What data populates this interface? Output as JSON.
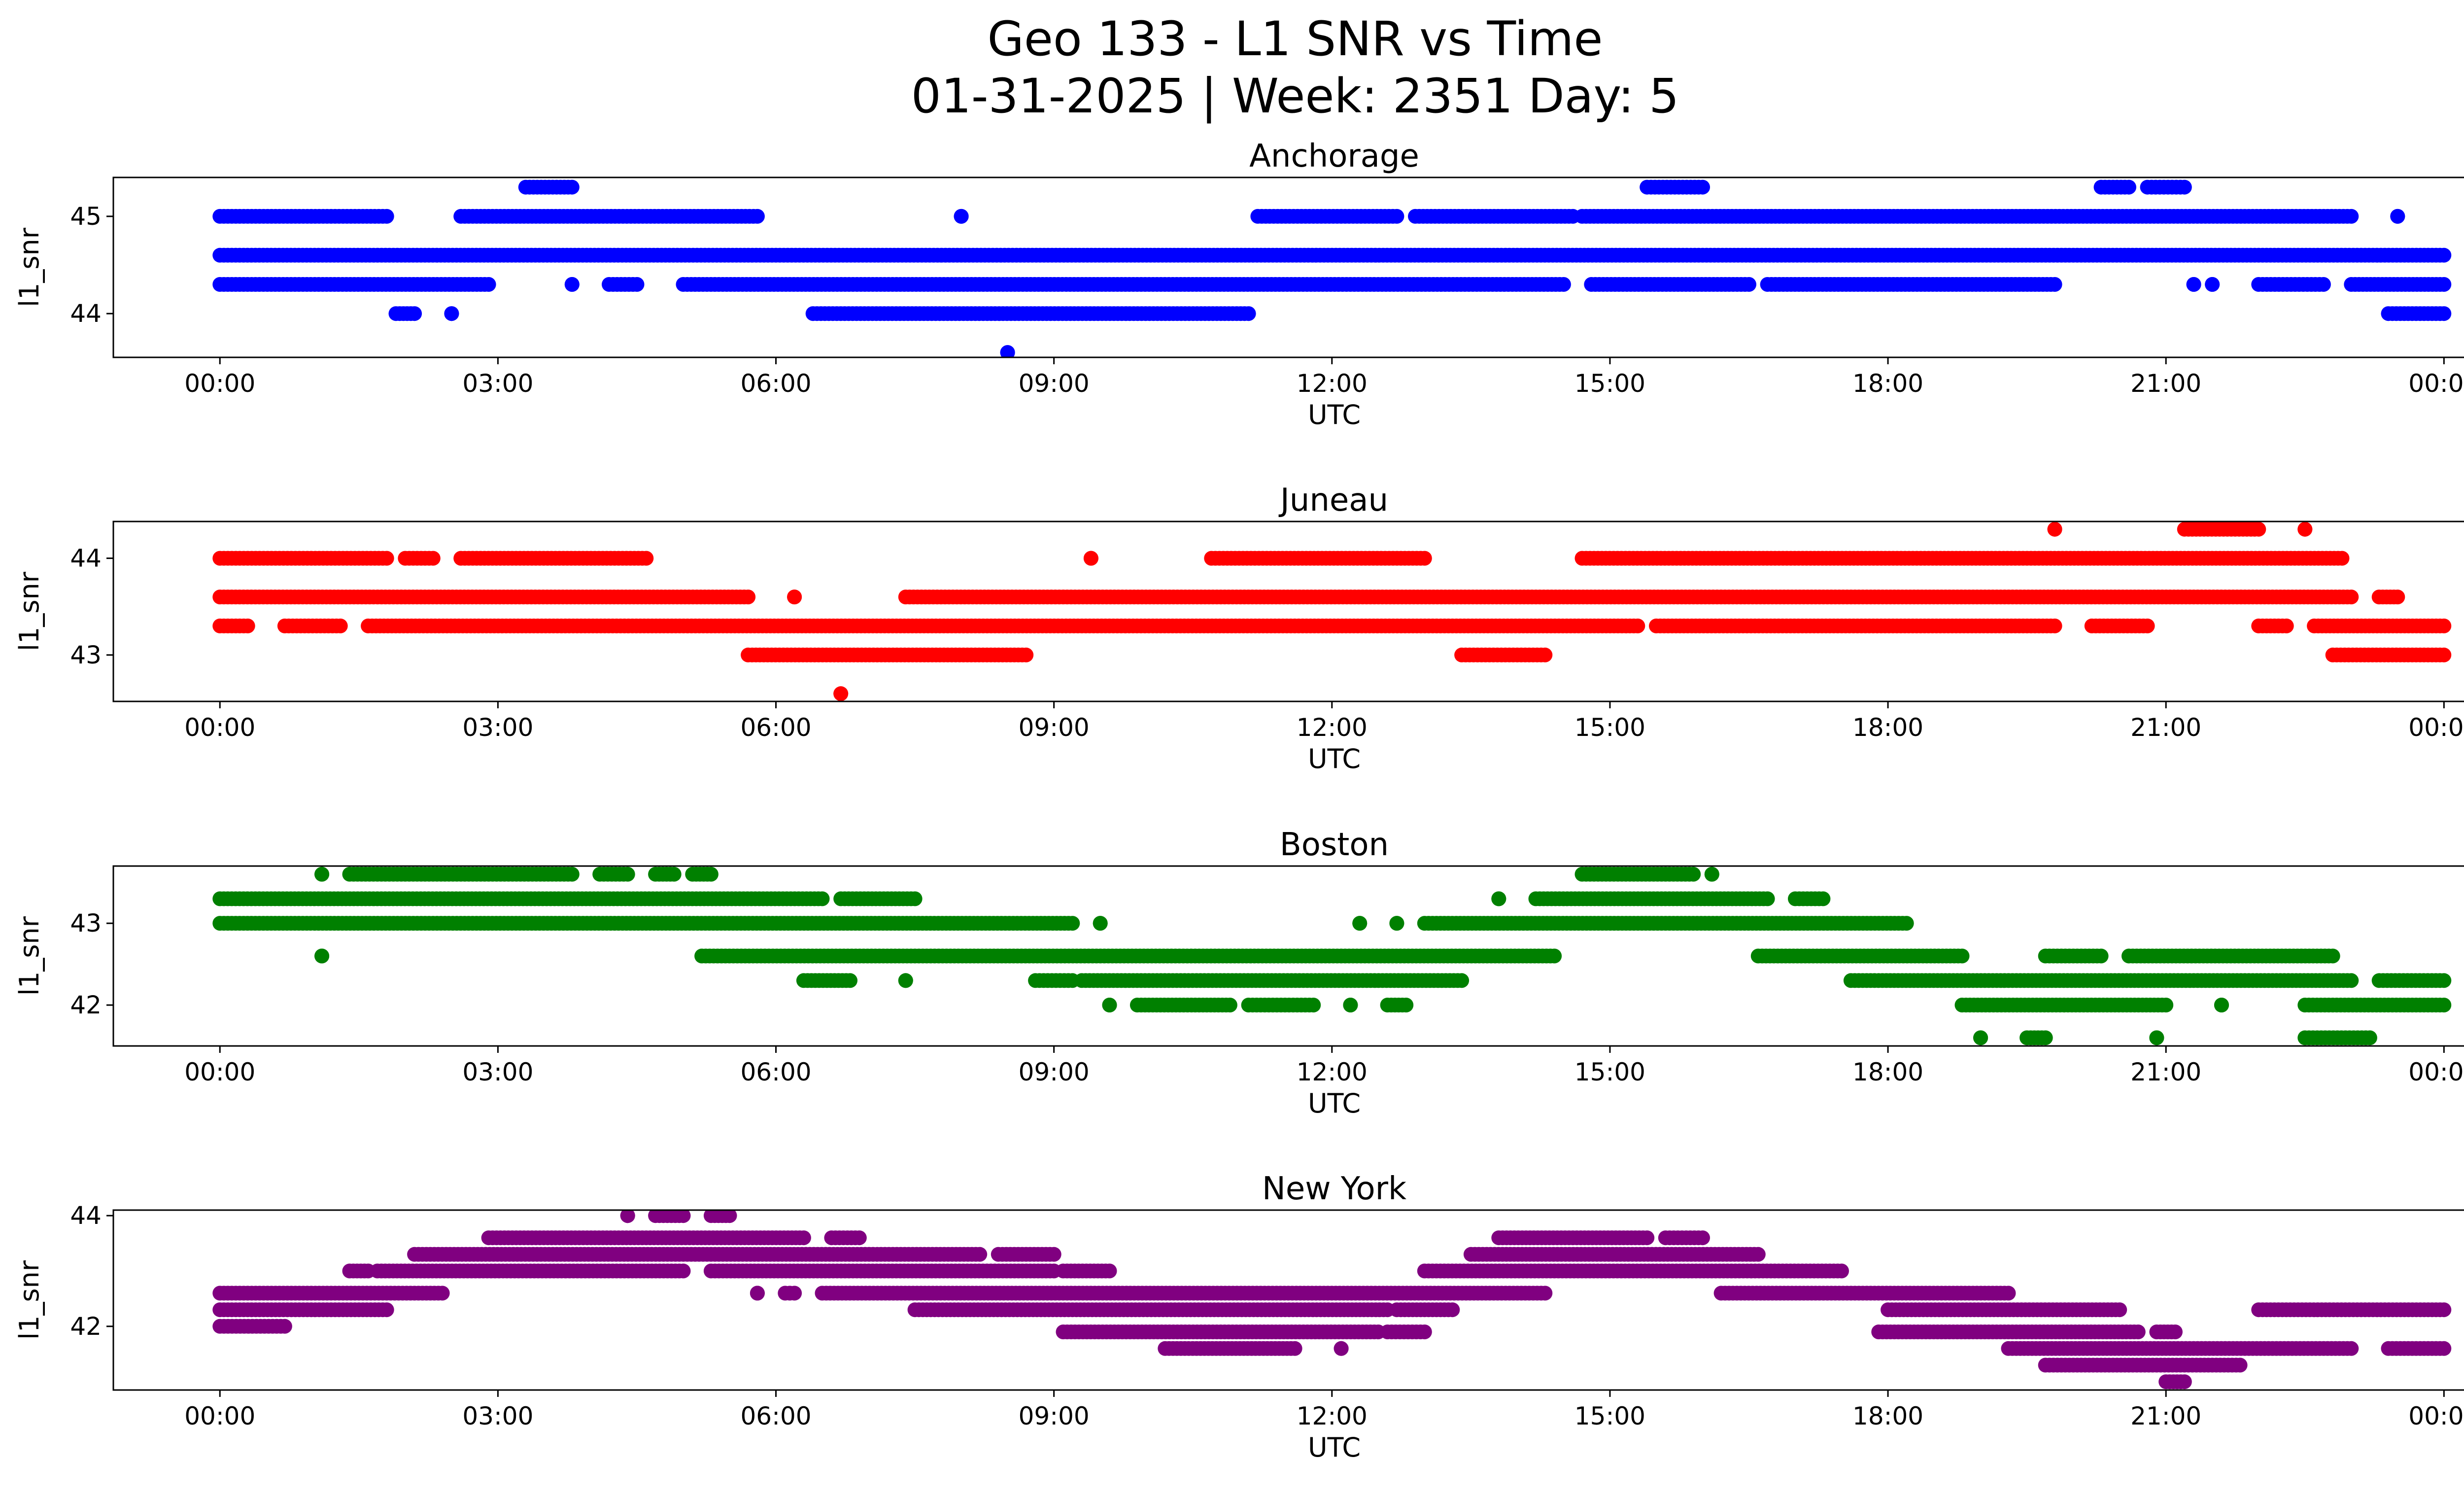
{
  "figure": {
    "title_line1": "Geo 133 - L1 SNR vs Time",
    "title_line2": "01-31-2025 | Week: 2351 Day: 5"
  },
  "chart_data": [
    {
      "type": "scatter",
      "title": "Anchorage",
      "xlabel": "UTC",
      "ylabel": "l1_snr",
      "color": "#0000ff",
      "xlim_hours": [
        -1.15,
        25.2
      ],
      "ylim": [
        43.55,
        45.4
      ],
      "x_ticks": [
        "00:00",
        "03:00",
        "06:00",
        "09:00",
        "12:00",
        "15:00",
        "18:00",
        "21:00",
        "00:00"
      ],
      "y_ticks": [
        44,
        45
      ],
      "bands": [
        {
          "y": 44.6,
          "segments": [
            [
              0.0,
              24.0
            ]
          ]
        },
        {
          "y": 45.0,
          "segments": [
            [
              0.0,
              1.8
            ],
            [
              2.6,
              5.8
            ],
            [
              8.0,
              8.0
            ],
            [
              11.2,
              12.7
            ],
            [
              12.9,
              14.6
            ],
            [
              14.7,
              23.0
            ],
            [
              23.5,
              23.5
            ]
          ]
        },
        {
          "y": 44.3,
          "segments": [
            [
              0.0,
              2.9
            ],
            [
              3.8,
              3.8
            ],
            [
              4.2,
              4.5
            ],
            [
              5.0,
              14.5
            ],
            [
              14.8,
              16.5
            ],
            [
              16.7,
              19.8
            ],
            [
              21.3,
              21.3
            ],
            [
              21.5,
              21.5
            ],
            [
              22.0,
              22.7
            ],
            [
              23.0,
              24.0
            ]
          ]
        },
        {
          "y": 44.0,
          "segments": [
            [
              1.9,
              2.1
            ],
            [
              2.5,
              2.5
            ],
            [
              6.4,
              11.1
            ],
            [
              23.4,
              24.0
            ]
          ]
        },
        {
          "y": 45.3,
          "segments": [
            [
              3.3,
              3.8
            ],
            [
              15.4,
              16.0
            ],
            [
              20.3,
              20.6
            ],
            [
              20.8,
              21.2
            ]
          ]
        },
        {
          "y": 43.6,
          "segments": [
            [
              8.5,
              8.5
            ]
          ]
        }
      ]
    },
    {
      "type": "scatter",
      "title": "Juneau",
      "xlabel": "UTC",
      "ylabel": "l1_snr",
      "color": "#ff0000",
      "xlim_hours": [
        -1.15,
        25.2
      ],
      "ylim": [
        42.52,
        44.38
      ],
      "x_ticks": [
        "00:00",
        "03:00",
        "06:00",
        "09:00",
        "12:00",
        "15:00",
        "18:00",
        "21:00",
        "00:00"
      ],
      "y_ticks": [
        43,
        44
      ],
      "bands": [
        {
          "y": 43.6,
          "segments": [
            [
              0.0,
              5.7
            ],
            [
              6.2,
              6.2
            ],
            [
              7.4,
              23.0
            ],
            [
              23.3,
              23.5
            ]
          ]
        },
        {
          "y": 43.3,
          "segments": [
            [
              0.0,
              0.3
            ],
            [
              0.7,
              1.3
            ],
            [
              1.6,
              15.3
            ],
            [
              15.5,
              19.8
            ],
            [
              20.2,
              20.8
            ],
            [
              22.0,
              22.3
            ],
            [
              22.6,
              24.0
            ]
          ]
        },
        {
          "y": 44.0,
          "segments": [
            [
              0.0,
              1.8
            ],
            [
              2.0,
              2.3
            ],
            [
              2.6,
              4.6
            ],
            [
              9.4,
              9.4
            ],
            [
              10.7,
              13.0
            ],
            [
              14.7,
              22.9
            ]
          ]
        },
        {
          "y": 43.0,
          "segments": [
            [
              5.7,
              8.7
            ],
            [
              13.4,
              14.3
            ],
            [
              22.8,
              24.0
            ]
          ]
        },
        {
          "y": 44.3,
          "segments": [
            [
              19.8,
              19.8
            ],
            [
              21.2,
              22.0
            ],
            [
              22.5,
              22.5
            ]
          ]
        },
        {
          "y": 42.6,
          "segments": [
            [
              6.7,
              6.7
            ]
          ]
        }
      ]
    },
    {
      "type": "scatter",
      "title": "Boston",
      "xlabel": "UTC",
      "ylabel": "l1_snr",
      "color": "#008000",
      "xlim_hours": [
        -1.15,
        25.2
      ],
      "ylim": [
        41.5,
        43.7
      ],
      "x_ticks": [
        "00:00",
        "03:00",
        "06:00",
        "09:00",
        "12:00",
        "15:00",
        "18:00",
        "21:00",
        "00:00"
      ],
      "y_ticks": [
        42,
        43
      ],
      "bands": [
        {
          "y": 43.3,
          "segments": [
            [
              0.0,
              6.5
            ],
            [
              6.7,
              7.5
            ],
            [
              13.8,
              13.8
            ],
            [
              14.2,
              16.7
            ],
            [
              17.0,
              17.3
            ]
          ]
        },
        {
          "y": 43.0,
          "segments": [
            [
              0.0,
              9.2
            ],
            [
              9.5,
              9.5
            ],
            [
              12.3,
              12.3
            ],
            [
              12.7,
              12.7
            ],
            [
              13.0,
              18.2
            ]
          ]
        },
        {
          "y": 42.6,
          "segments": [
            [
              1.1,
              1.1
            ],
            [
              5.2,
              14.4
            ],
            [
              16.6,
              18.8
            ],
            [
              19.7,
              20.3
            ],
            [
              20.6,
              22.8
            ]
          ]
        },
        {
          "y": 43.6,
          "segments": [
            [
              1.1,
              1.1
            ],
            [
              1.4,
              3.8
            ],
            [
              4.1,
              4.4
            ],
            [
              4.7,
              4.9
            ],
            [
              5.1,
              5.3
            ],
            [
              14.7,
              15.9
            ],
            [
              16.1,
              16.1
            ]
          ]
        },
        {
          "y": 42.3,
          "segments": [
            [
              6.3,
              6.8
            ],
            [
              7.4,
              7.4
            ],
            [
              8.8,
              9.2
            ],
            [
              9.3,
              13.4
            ],
            [
              17.6,
              23.0
            ],
            [
              23.3,
              24.0
            ]
          ]
        },
        {
          "y": 42.0,
          "segments": [
            [
              9.6,
              9.6
            ],
            [
              9.9,
              10.9
            ],
            [
              11.1,
              11.8
            ],
            [
              12.2,
              12.2
            ],
            [
              12.6,
              12.8
            ],
            [
              18.8,
              21.0
            ],
            [
              21.6,
              21.6
            ],
            [
              22.5,
              24.0
            ]
          ]
        },
        {
          "y": 41.6,
          "segments": [
            [
              19.0,
              19.0
            ],
            [
              19.5,
              19.7
            ],
            [
              20.9,
              20.9
            ],
            [
              22.5,
              23.2
            ]
          ]
        }
      ]
    },
    {
      "type": "scatter",
      "title": "New York",
      "xlabel": "UTC",
      "ylabel": "l1_snr",
      "color": "#800080",
      "xlim_hours": [
        -1.15,
        25.2
      ],
      "ylim": [
        40.85,
        44.1
      ],
      "x_ticks": [
        "00:00",
        "03:00",
        "06:00",
        "09:00",
        "12:00",
        "15:00",
        "18:00",
        "21:00",
        "00:00"
      ],
      "y_ticks": [
        42,
        44
      ],
      "bands": [
        {
          "y": 42.0,
          "segments": [
            [
              0.0,
              0.7
            ]
          ]
        },
        {
          "y": 42.3,
          "segments": [
            [
              0.0,
              1.8
            ],
            [
              7.5,
              12.6
            ],
            [
              12.7,
              13.3
            ],
            [
              18.0,
              20.5
            ],
            [
              22.0,
              24.0
            ]
          ]
        },
        {
          "y": 42.6,
          "segments": [
            [
              0.0,
              2.4
            ],
            [
              5.8,
              5.8
            ],
            [
              6.1,
              6.2
            ],
            [
              6.5,
              14.3
            ],
            [
              16.2,
              19.3
            ]
          ]
        },
        {
          "y": 43.0,
          "segments": [
            [
              1.4,
              1.6
            ],
            [
              1.7,
              5.0
            ],
            [
              5.3,
              9.0
            ],
            [
              9.1,
              9.6
            ],
            [
              13.0,
              17.5
            ]
          ]
        },
        {
          "y": 43.3,
          "segments": [
            [
              2.1,
              8.2
            ],
            [
              8.4,
              9.0
            ],
            [
              13.5,
              16.6
            ]
          ]
        },
        {
          "y": 43.6,
          "segments": [
            [
              2.9,
              6.3
            ],
            [
              6.6,
              6.9
            ],
            [
              13.8,
              15.4
            ],
            [
              15.6,
              16.0
            ]
          ]
        },
        {
          "y": 44.0,
          "segments": [
            [
              4.4,
              4.4
            ],
            [
              4.7,
              5.0
            ],
            [
              5.3,
              5.5
            ]
          ]
        },
        {
          "y": 41.9,
          "segments": [
            [
              9.1,
              12.5
            ],
            [
              12.6,
              13.0
            ],
            [
              17.9,
              20.7
            ],
            [
              20.9,
              21.1
            ]
          ]
        },
        {
          "y": 41.6,
          "segments": [
            [
              10.2,
              11.6
            ],
            [
              12.1,
              12.1
            ],
            [
              19.3,
              23.0
            ],
            [
              23.4,
              24.0
            ]
          ]
        },
        {
          "y": 41.3,
          "segments": [
            [
              19.7,
              21.8
            ]
          ]
        },
        {
          "y": 41.0,
          "segments": [
            [
              21.0,
              21.2
            ]
          ]
        }
      ]
    }
  ]
}
